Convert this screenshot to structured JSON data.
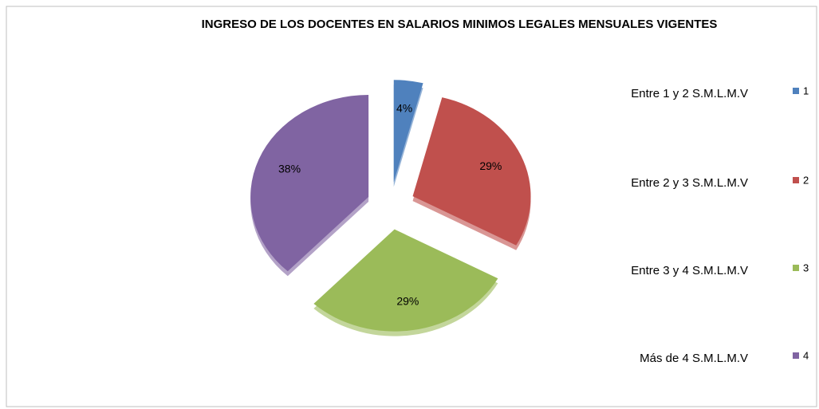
{
  "chart_data": {
    "type": "pie",
    "title": "INGRESO DE LOS DOCENTES EN SALARIOS MINIMOS LEGALES MENSUALES VIGENTES",
    "categories": [
      "1",
      "2",
      "3",
      "4"
    ],
    "values": [
      4,
      29,
      29,
      38
    ],
    "value_labels": [
      "4%",
      "29%",
      "29%",
      "38%"
    ],
    "colors": [
      "#4f81bd",
      "#c0504d",
      "#9bbb59",
      "#8064a2"
    ],
    "annotations": [
      "Entre 1 y 2 S.M.L.M.V",
      "Entre 2 y 3 S.M.L.M.V",
      "Entre 3 y 4 S.M.L.M.V",
      "Más de 4 S.M.L.M.V"
    ],
    "legend": "right"
  }
}
